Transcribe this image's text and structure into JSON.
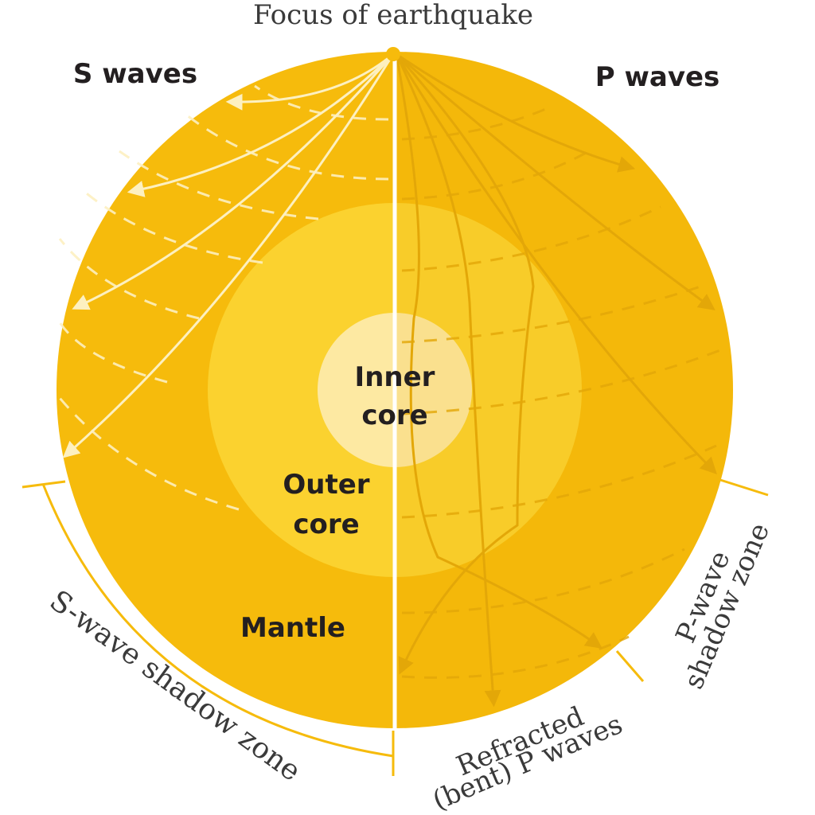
{
  "title": "Focus of earthquake",
  "labels": {
    "s_waves": "S waves",
    "p_waves": "P waves",
    "inner_core_line1": "Inner",
    "inner_core_line2": "core",
    "outer_core_line1": "Outer",
    "outer_core_line2": "core",
    "mantle": "Mantle",
    "s_shadow": "S-wave shadow zone",
    "p_shadow_line1": "P-wave",
    "p_shadow_line2": "shadow zone",
    "refracted_line1": "Refracted",
    "refracted_line2": "(bent) P waves"
  },
  "colors": {
    "mantle": "#f6bb0c",
    "outer_core": "#fbd22f",
    "inner_core": "#fde9a2",
    "s_wave_line": "#fdf0c0",
    "p_wave_line": "#e3a708",
    "text_bold": "#231f20",
    "text_light": "#3a3a3a"
  }
}
